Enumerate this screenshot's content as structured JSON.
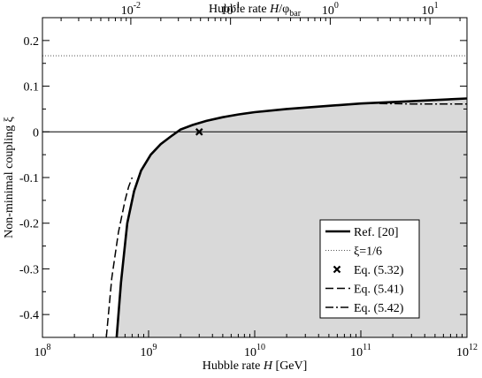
{
  "chart_data": {
    "type": "line",
    "title": "",
    "xlabel": "Hubble rate H [GeV]",
    "xlabel_top": "Hubble rate H/φ_bar",
    "ylabel": "Non-minimal coupling ξ",
    "xscale": "log",
    "xlim": [
      100000000.0,
      1000000000000.0
    ],
    "ylim": [
      -0.45,
      0.25
    ],
    "top_xscale": "log",
    "top_xlim": [
      0.0013,
      23.5
    ],
    "x_ticks": [
      {
        "value": 100000000.0,
        "base": "10",
        "exp": "8"
      },
      {
        "value": 1000000000.0,
        "base": "10",
        "exp": "9"
      },
      {
        "value": 10000000000.0,
        "base": "10",
        "exp": "10"
      },
      {
        "value": 100000000000.0,
        "base": "10",
        "exp": "11"
      },
      {
        "value": 1000000000000.0,
        "base": "10",
        "exp": "12"
      }
    ],
    "top_x_ticks": [
      {
        "value": 0.01,
        "base": "10",
        "exp": "-2"
      },
      {
        "value": 0.1,
        "base": "10",
        "exp": "-1"
      },
      {
        "value": 1,
        "base": "10",
        "exp": "0"
      },
      {
        "value": 10,
        "base": "10",
        "exp": "1"
      }
    ],
    "y_ticks": [
      {
        "value": 0.2,
        "label": "0.2"
      },
      {
        "value": 0.1,
        "label": "0.1"
      },
      {
        "value": 0,
        "label": "0"
      },
      {
        "value": -0.1,
        "label": "-0.1"
      },
      {
        "value": -0.2,
        "label": "-0.2"
      },
      {
        "value": -0.3,
        "label": "-0.3"
      },
      {
        "value": -0.4,
        "label": "-0.4"
      }
    ],
    "grid": false,
    "legend_position": "bottom-right",
    "series": [
      {
        "name": "Ref. [20]",
        "style": "solid-thick",
        "shaded_below": true,
        "points": [
          [
            500000000.0,
            -0.45
          ],
          [
            550000000.0,
            -0.33
          ],
          [
            630000000.0,
            -0.2
          ],
          [
            730000000.0,
            -0.13
          ],
          [
            850000000.0,
            -0.085
          ],
          [
            1050000000.0,
            -0.05
          ],
          [
            1300000000.0,
            -0.027
          ],
          [
            1600000000.0,
            -0.011
          ],
          [
            2000000000.0,
            0.005
          ],
          [
            2600000000.0,
            0.015
          ],
          [
            3500000000.0,
            0.024
          ],
          [
            5000000000.0,
            0.032
          ],
          [
            7000000000.0,
            0.038
          ],
          [
            10000000000.0,
            0.043
          ],
          [
            20000000000.0,
            0.05
          ],
          [
            50000000000.0,
            0.057
          ],
          [
            100000000000.0,
            0.062
          ],
          [
            300000000000.0,
            0.067
          ],
          [
            1000000000000.0,
            0.073
          ]
        ]
      },
      {
        "name": "ξ=1/6",
        "style": "dotted",
        "points": [
          [
            100000000.0,
            0.1667
          ],
          [
            1000000000000.0,
            0.1667
          ]
        ]
      },
      {
        "name": "Eq. (5.32)",
        "style": "x-marker",
        "points": [
          [
            3000000000.0,
            0.0
          ]
        ]
      },
      {
        "name": "Eq. (5.41)",
        "style": "dashed",
        "points": [
          [
            400000000.0,
            -0.45
          ],
          [
            450000000.0,
            -0.32
          ],
          [
            520000000.0,
            -0.22
          ],
          [
            600000000.0,
            -0.15
          ],
          [
            650000000.0,
            -0.12
          ],
          [
            700000000.0,
            -0.1
          ]
        ]
      },
      {
        "name": "Eq. (5.42)",
        "style": "dash-dot",
        "points": [
          [
            150000000000.0,
            0.062
          ],
          [
            300000000000.0,
            0.061
          ],
          [
            600000000000.0,
            0.061
          ],
          [
            1000000000000.0,
            0.061
          ]
        ]
      }
    ],
    "reference_lines": [
      {
        "y": 0
      }
    ]
  }
}
